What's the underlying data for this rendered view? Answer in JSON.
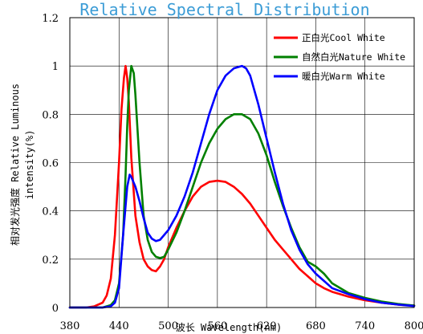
{
  "chart_data": {
    "type": "line",
    "title": "Relative Spectral Distribution",
    "xlabel": "波长 Wavelength(nm)",
    "ylabel_line1": "相对发光强度 Relative Luminous",
    "ylabel_line2": "intensity(%)",
    "xlim": [
      380,
      800
    ],
    "ylim": [
      0,
      1.2
    ],
    "x_ticks": [
      380,
      440,
      500,
      560,
      620,
      680,
      740,
      800
    ],
    "y_ticks": [
      0,
      0.2,
      0.4,
      0.6,
      0.8,
      1,
      1.2
    ],
    "x_tick_labels": [
      "380",
      "440",
      "500",
      "560",
      "620",
      "680",
      "740",
      "800"
    ],
    "y_tick_labels": [
      "0",
      "0.2",
      "0.4",
      "0.6",
      "0.8",
      "1",
      "1.2"
    ],
    "grid": true,
    "legend_position": "top-right",
    "series": [
      {
        "name": "正白光Cool White",
        "color": "#ff0000",
        "x": [
          380,
          400,
          410,
          420,
          425,
          430,
          435,
          440,
          443,
          446,
          448,
          450,
          452,
          455,
          460,
          465,
          470,
          475,
          480,
          485,
          490,
          495,
          500,
          510,
          520,
          530,
          540,
          550,
          560,
          570,
          580,
          590,
          600,
          610,
          620,
          630,
          640,
          650,
          660,
          670,
          680,
          690,
          700,
          720,
          740,
          760,
          780,
          800
        ],
        "y": [
          0,
          0,
          0.005,
          0.02,
          0.05,
          0.12,
          0.3,
          0.6,
          0.82,
          0.95,
          1.0,
          0.95,
          0.85,
          0.62,
          0.38,
          0.27,
          0.2,
          0.17,
          0.155,
          0.15,
          0.17,
          0.2,
          0.25,
          0.33,
          0.4,
          0.46,
          0.5,
          0.52,
          0.525,
          0.52,
          0.5,
          0.47,
          0.43,
          0.38,
          0.33,
          0.28,
          0.24,
          0.2,
          0.16,
          0.13,
          0.1,
          0.08,
          0.065,
          0.045,
          0.03,
          0.02,
          0.012,
          0.008
        ]
      },
      {
        "name": "自然白光Nature White",
        "color": "#008000",
        "x": [
          380,
          420,
          430,
          435,
          440,
          445,
          448,
          450,
          452,
          455,
          458,
          460,
          465,
          470,
          475,
          480,
          485,
          490,
          495,
          500,
          510,
          520,
          530,
          540,
          550,
          560,
          570,
          580,
          590,
          600,
          610,
          620,
          630,
          640,
          650,
          660,
          670,
          680,
          690,
          700,
          720,
          740,
          760,
          780,
          800
        ],
        "y": [
          0,
          0,
          0.01,
          0.03,
          0.1,
          0.3,
          0.55,
          0.75,
          0.9,
          1.0,
          0.97,
          0.88,
          0.6,
          0.38,
          0.28,
          0.23,
          0.21,
          0.205,
          0.21,
          0.24,
          0.31,
          0.4,
          0.5,
          0.6,
          0.68,
          0.74,
          0.78,
          0.8,
          0.8,
          0.78,
          0.72,
          0.63,
          0.52,
          0.42,
          0.33,
          0.25,
          0.19,
          0.17,
          0.14,
          0.1,
          0.06,
          0.04,
          0.025,
          0.015,
          0.008
        ]
      },
      {
        "name": "暖白光Warm White",
        "color": "#0000ff",
        "x": [
          380,
          420,
          430,
          435,
          440,
          445,
          450,
          453,
          455,
          460,
          465,
          470,
          475,
          480,
          485,
          490,
          495,
          500,
          510,
          520,
          530,
          540,
          550,
          560,
          570,
          580,
          590,
          595,
          600,
          605,
          610,
          620,
          630,
          640,
          650,
          660,
          670,
          680,
          690,
          700,
          720,
          740,
          760,
          780,
          800
        ],
        "y": [
          0,
          0,
          0.005,
          0.02,
          0.08,
          0.3,
          0.5,
          0.55,
          0.54,
          0.5,
          0.44,
          0.37,
          0.31,
          0.285,
          0.275,
          0.28,
          0.3,
          0.32,
          0.38,
          0.46,
          0.56,
          0.68,
          0.8,
          0.9,
          0.96,
          0.99,
          1.0,
          0.99,
          0.96,
          0.9,
          0.84,
          0.7,
          0.56,
          0.43,
          0.32,
          0.24,
          0.18,
          0.14,
          0.11,
          0.08,
          0.055,
          0.035,
          0.02,
          0.012,
          0.006
        ]
      }
    ]
  }
}
